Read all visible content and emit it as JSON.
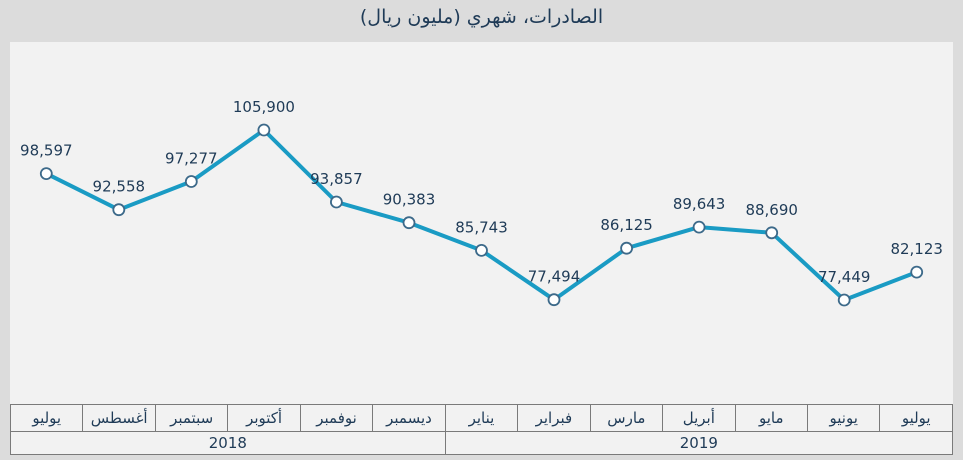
{
  "chart_data": {
    "type": "line",
    "title": "الصادرات، شهري (مليون ريال)",
    "categories": [
      "يوليو",
      "أغسطس",
      "سبتمبر",
      "أكتوبر",
      "نوفمبر",
      "ديسمبر",
      "يناير",
      "فبراير",
      "مارس",
      "أبريل",
      "مايو",
      "يونيو",
      "يوليو"
    ],
    "year_groups": [
      {
        "label": "2018",
        "span": 6
      },
      {
        "label": "2019",
        "span": 7
      }
    ],
    "series": [
      {
        "values": [
          98597,
          92558,
          97277,
          105900,
          93857,
          90383,
          85743,
          77494,
          86125,
          89643,
          88690,
          77449,
          82123
        ],
        "data_labels": [
          "98,597",
          "92,558",
          "97,277",
          "105,900",
          "93,857",
          "90,383",
          "85,743",
          "77,494",
          "86,125",
          "89,643",
          "88,690",
          "77,449",
          "82,123"
        ],
        "color": "#1a9bc4"
      }
    ],
    "grid": false,
    "legend": "none"
  }
}
